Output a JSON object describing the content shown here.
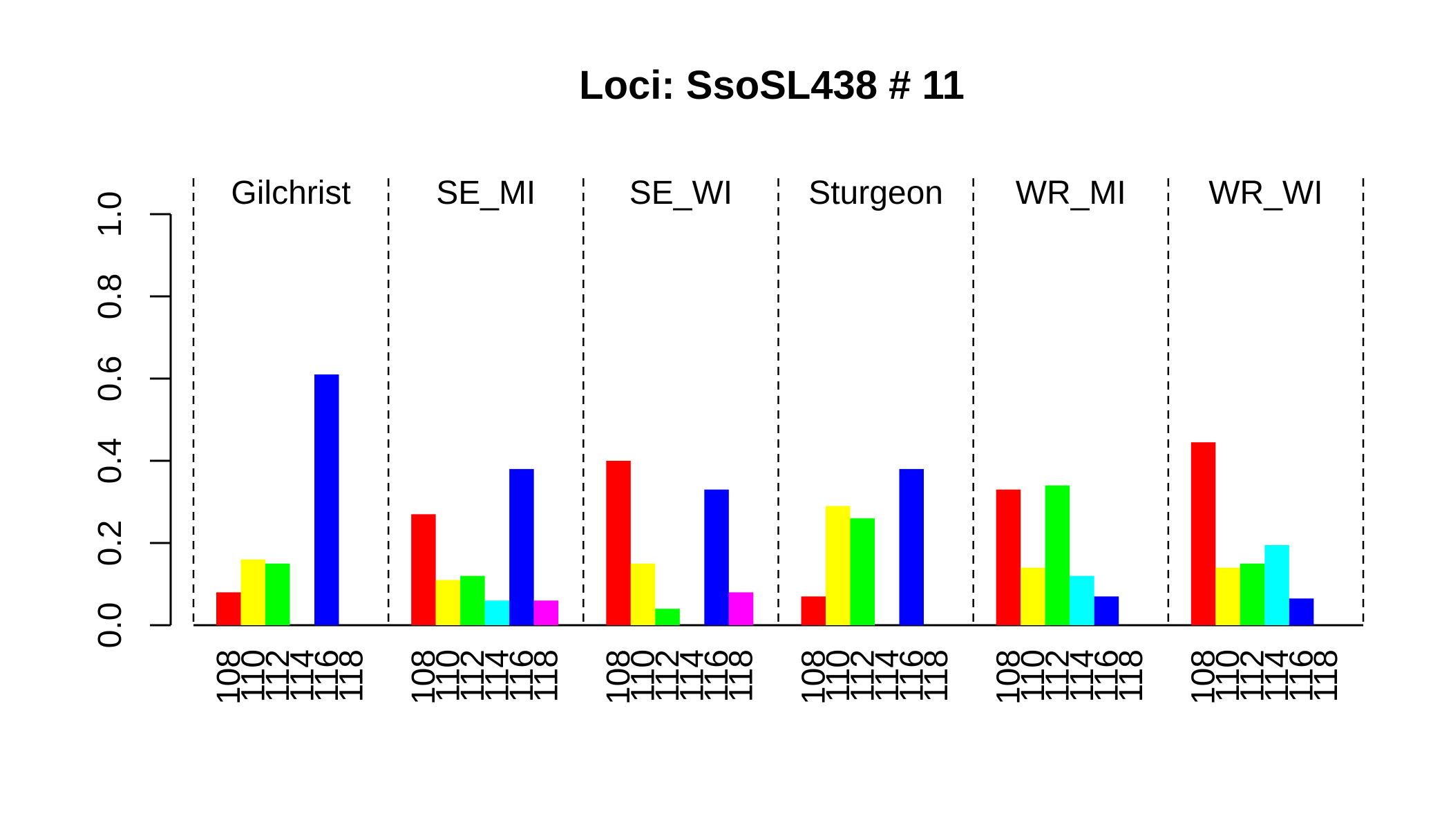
{
  "chart_data": {
    "type": "bar",
    "title": "Loci: SsoSL438 # 11",
    "xlabel": "",
    "ylabel": "",
    "ylim": [
      0,
      1
    ],
    "y_ticks": [
      "0.0",
      "0.2",
      "0.4",
      "0.6",
      "0.8",
      "1.0"
    ],
    "categories": [
      "108",
      "110",
      "112",
      "114",
      "116",
      "118"
    ],
    "category_labels": [
      "108",
      "110",
      "112",
      "114",
      "116",
      "118"
    ],
    "colors": [
      "#ff0000",
      "#ffff00",
      "#00ff00",
      "#00ffff",
      "#0000ff",
      "#ff00ff"
    ],
    "groups": [
      {
        "name": "Gilchrist",
        "values": [
          0.08,
          0.16,
          0.15,
          0,
          0.61,
          0
        ]
      },
      {
        "name": "SE_MI",
        "values": [
          0.27,
          0.11,
          0.12,
          0.06,
          0.38,
          0.06
        ]
      },
      {
        "name": "SE_WI",
        "values": [
          0.4,
          0.15,
          0.04,
          0,
          0.33,
          0.08
        ]
      },
      {
        "name": "Sturgeon",
        "values": [
          0.07,
          0.29,
          0.26,
          0,
          0.38,
          0
        ]
      },
      {
        "name": "WR_MI",
        "values": [
          0.33,
          0.14,
          0.34,
          0.12,
          0.07,
          0
        ]
      },
      {
        "name": "WR_WI",
        "values": [
          0.445,
          0.14,
          0.15,
          0.195,
          0.065,
          0
        ]
      }
    ]
  }
}
